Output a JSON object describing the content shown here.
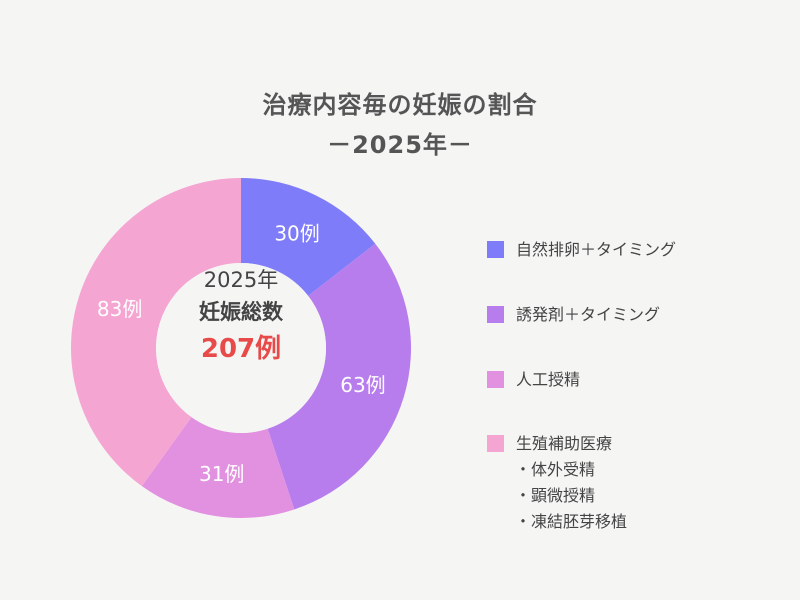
{
  "chart_data": {
    "type": "pie",
    "title": "治療内容毎の妊娠の割合",
    "subtitle": "－2025年－",
    "center": {
      "year": "2025年",
      "label": "妊娠総数",
      "total": "207例"
    },
    "series": [
      {
        "name": "自然排卵＋タイミング",
        "value": 30,
        "label": "30例",
        "color": "#7f7cf9"
      },
      {
        "name": "誘発剤＋タイミング",
        "value": 63,
        "label": "63例",
        "color": "#b87ded"
      },
      {
        "name": "人工授精",
        "value": 31,
        "label": "31例",
        "color": "#e290e0"
      },
      {
        "name": "生殖補助医療",
        "value": 83,
        "label": "83例",
        "color": "#f5a5d2",
        "sub_items": [
          "・体外受精",
          "・顕微授精",
          "・凍結胚芽移植"
        ]
      }
    ],
    "legend_position": "right"
  }
}
